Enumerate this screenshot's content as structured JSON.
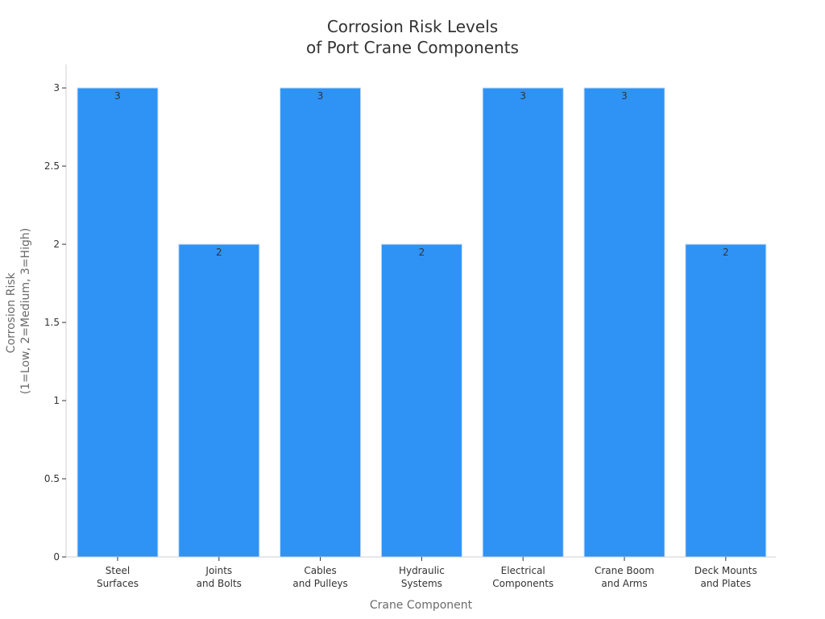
{
  "chart_data": {
    "type": "bar",
    "title_lines": [
      "Corrosion Risk Levels",
      "of Port Crane Components"
    ],
    "xlabel": "Crane Component",
    "ylabel_lines": [
      "Corrosion Risk",
      "(1=Low, 2=Medium, 3=High)"
    ],
    "categories": [
      [
        "Steel",
        "Surfaces"
      ],
      [
        "Joints",
        "and Bolts"
      ],
      [
        "Cables",
        "and Pulleys"
      ],
      [
        "Hydraulic",
        "Systems"
      ],
      [
        "Electrical",
        "Components"
      ],
      [
        "Crane Boom",
        "and Arms"
      ],
      [
        "Deck Mounts",
        "and Plates"
      ]
    ],
    "values": [
      3,
      2,
      3,
      2,
      3,
      3,
      2
    ],
    "ylim": [
      0,
      3.15
    ],
    "yticks": [
      0,
      0.5,
      1,
      1.5,
      2,
      2.5,
      3
    ],
    "ytick_labels": [
      "0",
      "0.5",
      "1",
      "1.5",
      "2",
      "2.5",
      "3"
    ],
    "grid": false,
    "legend": "none",
    "bar_color": "#2f92f5",
    "bar_edge_color": "#c9ddf3",
    "axis_color": "#d0d0d0"
  }
}
